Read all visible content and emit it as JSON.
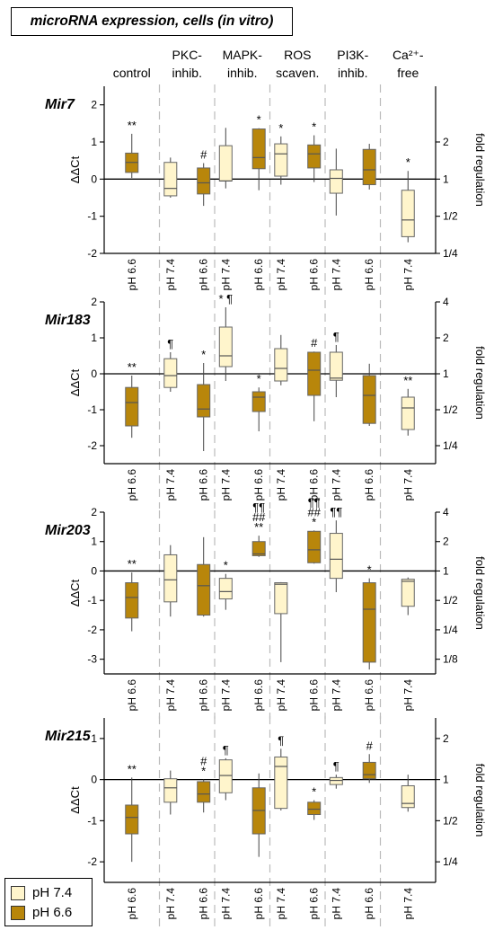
{
  "title": "microRNA expression, cells (in vitro)",
  "colors": {
    "pH74": "#fff5cc",
    "pH66": "#b8860b",
    "median": "#555555",
    "divider": "#bbbbbb"
  },
  "legend": [
    {
      "label": "pH 7.4",
      "color": "#fff5cc"
    },
    {
      "label": "pH 6.6",
      "color": "#b8860b"
    }
  ],
  "groups": [
    {
      "line1": "control",
      "line2": ""
    },
    {
      "line1": "PKC-",
      "line2": "inhib."
    },
    {
      "line1": "MAPK-",
      "line2": "inhib."
    },
    {
      "line1": "ROS",
      "line2": "scaven."
    },
    {
      "line1": "PI3K-",
      "line2": "inhib."
    },
    {
      "line1": "Ca²⁺-",
      "line2": "free"
    }
  ],
  "chart_data": [
    {
      "type": "box",
      "title": "Mir7",
      "ylabel": "ΔΔCt",
      "y2label": "fold regulation",
      "ylim": [
        -2,
        2.5
      ],
      "yticks": [
        "-2",
        "-1",
        "0",
        "1",
        "2"
      ],
      "y2ticks": [
        "1/4",
        "1/2",
        "1",
        "2"
      ],
      "boxes": [
        {
          "group": "control",
          "condition": "pH 6.6",
          "min": 0.03,
          "q1": 0.18,
          "median": 0.45,
          "q3": 0.7,
          "max": 1.22,
          "annotation": [
            "**"
          ]
        },
        {
          "group": "PKC-inhib.",
          "condition": "pH 7.4",
          "min": -0.5,
          "q1": -0.45,
          "median": -0.25,
          "q3": 0.45,
          "max": 0.58,
          "annotation": []
        },
        {
          "group": "PKC-inhib.",
          "condition": "pH 6.6",
          "min": -0.72,
          "q1": -0.4,
          "median": -0.1,
          "q3": 0.3,
          "max": 0.43,
          "annotation": [
            "#"
          ]
        },
        {
          "group": "MAPK-inhib.",
          "condition": "pH 7.4",
          "min": -0.25,
          "q1": -0.05,
          "median": -0.05,
          "q3": 0.9,
          "max": 1.38,
          "annotation": []
        },
        {
          "group": "MAPK-inhib.",
          "condition": "pH 6.6",
          "min": -0.3,
          "q1": 0.28,
          "median": 0.58,
          "q3": 1.35,
          "max": 1.37,
          "annotation": [
            "*"
          ]
        },
        {
          "group": "ROS scaven.",
          "condition": "pH 7.4",
          "min": -0.15,
          "q1": 0.08,
          "median": 0.68,
          "q3": 0.95,
          "max": 1.15,
          "annotation": [
            "*"
          ]
        },
        {
          "group": "ROS scaven.",
          "condition": "pH 6.6",
          "min": -0.08,
          "q1": 0.3,
          "median": 0.68,
          "q3": 0.92,
          "max": 1.18,
          "annotation": [
            "*"
          ]
        },
        {
          "group": "PI3K-inhib.",
          "condition": "pH 7.4",
          "min": -0.98,
          "q1": -0.38,
          "median": 0.02,
          "q3": 0.25,
          "max": 0.82,
          "annotation": []
        },
        {
          "group": "PI3K-inhib.",
          "condition": "pH 6.6",
          "min": -0.28,
          "q1": -0.15,
          "median": 0.25,
          "q3": 0.8,
          "max": 0.95,
          "annotation": []
        },
        {
          "group": "Ca²⁺-free",
          "condition": "pH 7.4",
          "min": -1.7,
          "q1": -1.55,
          "median": -1.1,
          "q3": -0.3,
          "max": 0.22,
          "annotation": [
            "*"
          ]
        }
      ]
    },
    {
      "type": "box",
      "title": "Mir183",
      "ylabel": "ΔΔCt",
      "y2label": "fold regulation",
      "ylim": [
        -2.5,
        2
      ],
      "yticks": [
        "-2",
        "-1",
        "0",
        "1",
        "2"
      ],
      "y2ticks": [
        "1/4",
        "1/2",
        "1",
        "2",
        "4"
      ],
      "boxes": [
        {
          "group": "control",
          "condition": "pH 6.6",
          "min": -1.78,
          "q1": -1.45,
          "median": -0.8,
          "q3": -0.38,
          "max": -0.05,
          "annotation": [
            "**"
          ]
        },
        {
          "group": "PKC-inhib.",
          "condition": "pH 7.4",
          "min": -0.5,
          "q1": -0.38,
          "median": -0.05,
          "q3": 0.42,
          "max": 0.6,
          "annotation": [
            "¶"
          ]
        },
        {
          "group": "PKC-inhib.",
          "condition": "pH 6.6",
          "min": -2.15,
          "q1": -1.2,
          "median": -0.98,
          "q3": -0.3,
          "max": 0.3,
          "annotation": [
            "*"
          ]
        },
        {
          "group": "MAPK-inhib.",
          "condition": "pH 7.4",
          "min": -0.2,
          "q1": 0.2,
          "median": 0.5,
          "q3": 1.3,
          "max": 1.85,
          "annotation": [
            "* ¶"
          ]
        },
        {
          "group": "MAPK-inhib.",
          "condition": "pH 6.6",
          "min": -1.6,
          "q1": -1.05,
          "median": -0.65,
          "q3": -0.5,
          "max": -0.38,
          "annotation": [
            "*"
          ]
        },
        {
          "group": "ROS scaven.",
          "condition": "pH 7.4",
          "min": -0.32,
          "q1": -0.2,
          "median": 0.15,
          "q3": 0.7,
          "max": 1.08,
          "annotation": []
        },
        {
          "group": "ROS scaven.",
          "condition": "pH 6.6",
          "min": -1.32,
          "q1": -0.6,
          "median": 0.1,
          "q3": 0.6,
          "max": 0.62,
          "annotation": [
            "#"
          ]
        },
        {
          "group": "PI3K-inhib.",
          "condition": "pH 7.4",
          "min": -0.65,
          "q1": -0.18,
          "median": -0.12,
          "q3": 0.6,
          "max": 0.8,
          "annotation": [
            "¶"
          ]
        },
        {
          "group": "PI3K-inhib.",
          "condition": "pH 6.6",
          "min": -1.45,
          "q1": -1.38,
          "median": -0.6,
          "q3": -0.05,
          "max": 0.28,
          "annotation": []
        },
        {
          "group": "Ca²⁺-free",
          "condition": "pH 7.4",
          "min": -1.72,
          "q1": -1.55,
          "median": -0.95,
          "q3": -0.65,
          "max": -0.42,
          "annotation": [
            "**"
          ]
        }
      ]
    },
    {
      "type": "box",
      "title": "Mir203",
      "ylabel": "ΔΔCt",
      "y2label": "fold regulation",
      "ylim": [
        -3.5,
        2
      ],
      "yticks": [
        "-3",
        "-2",
        "-1",
        "0",
        "1",
        "2"
      ],
      "y2ticks": [
        "1/8",
        "1/4",
        "1/2",
        "1",
        "2",
        "4"
      ],
      "boxes": [
        {
          "group": "control",
          "condition": "pH 6.6",
          "min": -2.05,
          "q1": -1.6,
          "median": -0.9,
          "q3": -0.4,
          "max": -0.05,
          "annotation": [
            "**"
          ]
        },
        {
          "group": "PKC-inhib.",
          "condition": "pH 7.4",
          "min": -1.55,
          "q1": -1.05,
          "median": -0.3,
          "q3": 0.55,
          "max": 0.88,
          "annotation": []
        },
        {
          "group": "PKC-inhib.",
          "condition": "pH 6.6",
          "min": -1.55,
          "q1": -1.5,
          "median": -0.5,
          "q3": 0.22,
          "max": 1.15,
          "annotation": []
        },
        {
          "group": "MAPK-inhib.",
          "condition": "pH 7.4",
          "min": -1.32,
          "q1": -0.95,
          "median": -0.7,
          "q3": -0.25,
          "max": -0.1,
          "annotation": [
            "*"
          ]
        },
        {
          "group": "MAPK-inhib.",
          "condition": "pH 6.6",
          "min": 0.48,
          "q1": 0.52,
          "median": 0.58,
          "q3": 1.0,
          "max": 1.2,
          "annotation": [
            "**",
            "##",
            "¶¶"
          ]
        },
        {
          "group": "ROS scaven.",
          "condition": "pH 7.4",
          "min": -3.1,
          "q1": -1.45,
          "median": -0.45,
          "q3": -0.4,
          "max": -0.38,
          "annotation": []
        },
        {
          "group": "ROS scaven.",
          "condition": "pH 6.6",
          "min": 0.25,
          "q1": 0.28,
          "median": 0.72,
          "q3": 1.35,
          "max": 1.38,
          "annotation": [
            "*",
            "##",
            "¶¶"
          ]
        },
        {
          "group": "PI3K-inhib.",
          "condition": "pH 7.4",
          "min": -0.72,
          "q1": -0.25,
          "median": 0.4,
          "q3": 1.28,
          "max": 1.72,
          "annotation": [
            "¶¶"
          ]
        },
        {
          "group": "PI3K-inhib.",
          "condition": "pH 6.6",
          "min": -3.35,
          "q1": -3.1,
          "median": -1.3,
          "q3": -0.4,
          "max": -0.25,
          "annotation": [
            "*"
          ]
        },
        {
          "group": "Ca²⁺-free",
          "condition": "pH 7.4",
          "min": -1.5,
          "q1": -1.2,
          "median": -0.35,
          "q3": -0.28,
          "max": -0.22,
          "annotation": []
        }
      ]
    },
    {
      "type": "box",
      "title": "Mir215",
      "ylabel": "ΔΔCt",
      "y2label": "fold regulation",
      "ylim": [
        -2.5,
        1.5
      ],
      "yticks": [
        "-2",
        "-1",
        "0",
        "1"
      ],
      "y2ticks": [
        "1/4",
        "1/2",
        "1",
        "2"
      ],
      "boxes": [
        {
          "group": "control",
          "condition": "pH 6.6",
          "min": -2.0,
          "q1": -1.32,
          "median": -0.92,
          "q3": -0.62,
          "max": 0.05,
          "annotation": [
            "**"
          ]
        },
        {
          "group": "PKC-inhib.",
          "condition": "pH 7.4",
          "min": -0.85,
          "q1": -0.55,
          "median": -0.2,
          "q3": 0.02,
          "max": 0.22,
          "annotation": []
        },
        {
          "group": "PKC-inhib.",
          "condition": "pH 6.6",
          "min": -0.8,
          "q1": -0.55,
          "median": -0.35,
          "q3": -0.05,
          "max": 0.0,
          "annotation": [
            "*",
            "#"
          ]
        },
        {
          "group": "MAPK-inhib.",
          "condition": "pH 7.4",
          "min": -0.5,
          "q1": -0.32,
          "median": 0.1,
          "q3": 0.48,
          "max": 0.52,
          "annotation": [
            "¶"
          ]
        },
        {
          "group": "MAPK-inhib.",
          "condition": "pH 6.6",
          "min": -1.88,
          "q1": -1.32,
          "median": -0.75,
          "q3": -0.2,
          "max": 0.15,
          "annotation": []
        },
        {
          "group": "ROS scaven.",
          "condition": "pH 7.4",
          "min": -0.75,
          "q1": -0.7,
          "median": 0.32,
          "q3": 0.55,
          "max": 0.75,
          "annotation": [
            "¶"
          ]
        },
        {
          "group": "ROS scaven.",
          "condition": "pH 6.6",
          "min": -0.98,
          "q1": -0.85,
          "median": -0.72,
          "q3": -0.55,
          "max": -0.5,
          "annotation": [
            "*"
          ]
        },
        {
          "group": "PI3K-inhib.",
          "condition": "pH 7.4",
          "min": -0.22,
          "q1": -0.12,
          "median": -0.02,
          "q3": 0.05,
          "max": 0.12,
          "annotation": [
            "¶"
          ]
        },
        {
          "group": "PI3K-inhib.",
          "condition": "pH 6.6",
          "min": -0.08,
          "q1": 0.02,
          "median": 0.12,
          "q3": 0.42,
          "max": 0.62,
          "annotation": [
            "#"
          ]
        },
        {
          "group": "Ca²⁺-free",
          "condition": "pH 7.4",
          "min": -0.78,
          "q1": -0.68,
          "median": -0.58,
          "q3": -0.15,
          "max": 0.12,
          "annotation": []
        }
      ]
    }
  ]
}
